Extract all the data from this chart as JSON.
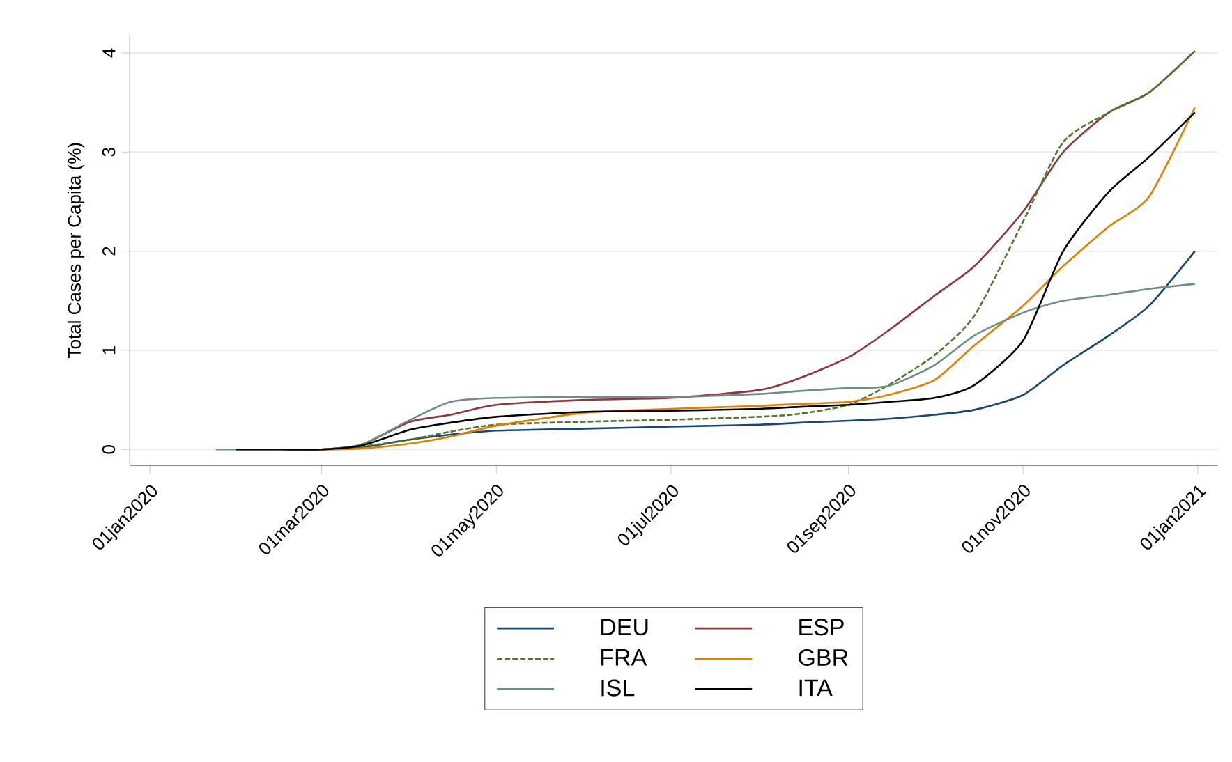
{
  "chart_data": {
    "type": "line",
    "ylabel": "Total Cases per Capita (%)",
    "x": [
      "2020-01-31",
      "2020-02-15",
      "2020-03-01",
      "2020-03-15",
      "2020-04-01",
      "2020-04-15",
      "2020-05-01",
      "2020-06-01",
      "2020-07-01",
      "2020-08-01",
      "2020-08-15",
      "2020-09-01",
      "2020-09-15",
      "2020-10-01",
      "2020-10-15",
      "2020-11-01",
      "2020-11-15",
      "2020-12-01",
      "2020-12-15",
      "2020-12-31"
    ],
    "series": [
      {
        "name": "DEU",
        "color": "#1a476f",
        "line_style": "solid",
        "values": [
          null,
          null,
          0,
          0.02,
          0.1,
          0.15,
          0.19,
          0.21,
          0.23,
          0.25,
          0.27,
          0.29,
          0.31,
          0.35,
          0.4,
          0.55,
          0.85,
          1.15,
          1.45,
          2.0
        ]
      },
      {
        "name": "ESP",
        "color": "#90353b",
        "line_style": "solid",
        "values": [
          null,
          null,
          0,
          0.05,
          0.28,
          0.35,
          0.45,
          0.5,
          0.52,
          0.6,
          0.72,
          0.93,
          1.2,
          1.55,
          1.85,
          2.4,
          3.0,
          3.4,
          3.6,
          4.02
        ]
      },
      {
        "name": "FRA",
        "color": "#55752f",
        "line_style": "dashed",
        "values": [
          null,
          null,
          0,
          0.03,
          0.1,
          0.18,
          0.25,
          0.28,
          0.3,
          0.33,
          0.36,
          0.45,
          0.65,
          0.95,
          1.35,
          2.3,
          3.1,
          3.4,
          3.6,
          4.02
        ]
      },
      {
        "name": "GBR",
        "color": "#e37e00",
        "line_style": "solid",
        "values": [
          null,
          null,
          0,
          0.01,
          0.06,
          0.13,
          0.24,
          0.37,
          0.41,
          0.44,
          0.46,
          0.48,
          0.55,
          0.7,
          1.05,
          1.45,
          1.85,
          2.25,
          2.55,
          3.45
        ]
      },
      {
        "name": "ISL",
        "color": "#6e8e84",
        "line_style": "solid",
        "x": [
          "2020-01-24",
          "2020-02-15",
          "2020-03-01",
          "2020-03-15",
          "2020-04-01",
          "2020-04-15",
          "2020-05-01",
          "2020-06-01",
          "2020-07-01",
          "2020-08-01",
          "2020-08-15",
          "2020-09-01",
          "2020-09-15",
          "2020-10-01",
          "2020-10-15",
          "2020-11-01",
          "2020-11-15",
          "2020-12-01",
          "2020-12-15",
          "2020-12-31"
        ],
        "values": [
          0,
          0,
          0,
          0.05,
          0.3,
          0.48,
          0.52,
          0.53,
          0.53,
          0.56,
          0.59,
          0.62,
          0.64,
          0.85,
          1.15,
          1.38,
          1.5,
          1.56,
          1.62,
          1.67
        ]
      },
      {
        "name": "ITA",
        "color": "#000000",
        "line_style": "solid",
        "values": [
          0,
          0,
          0,
          0.04,
          0.2,
          0.27,
          0.33,
          0.38,
          0.39,
          0.41,
          0.43,
          0.45,
          0.48,
          0.52,
          0.65,
          1.1,
          2.0,
          2.6,
          2.95,
          3.4
        ]
      }
    ],
    "xlim": [
      "2019-12-25",
      "2021-01-08"
    ],
    "xticks": [
      {
        "value": "2020-01-01",
        "label": "01jan2020"
      },
      {
        "value": "2020-03-01",
        "label": "01mar2020"
      },
      {
        "value": "2020-05-01",
        "label": "01may2020"
      },
      {
        "value": "2020-07-01",
        "label": "01jul2020"
      },
      {
        "value": "2020-09-01",
        "label": "01sep2020"
      },
      {
        "value": "2020-11-01",
        "label": "01nov2020"
      },
      {
        "value": "2021-01-01",
        "label": "01jan2021"
      }
    ],
    "ylim": [
      -0.16,
      4.18
    ],
    "yticks": [
      0,
      1,
      2,
      3,
      4
    ],
    "grid": "y",
    "legend": "bottom",
    "marker": "none"
  }
}
